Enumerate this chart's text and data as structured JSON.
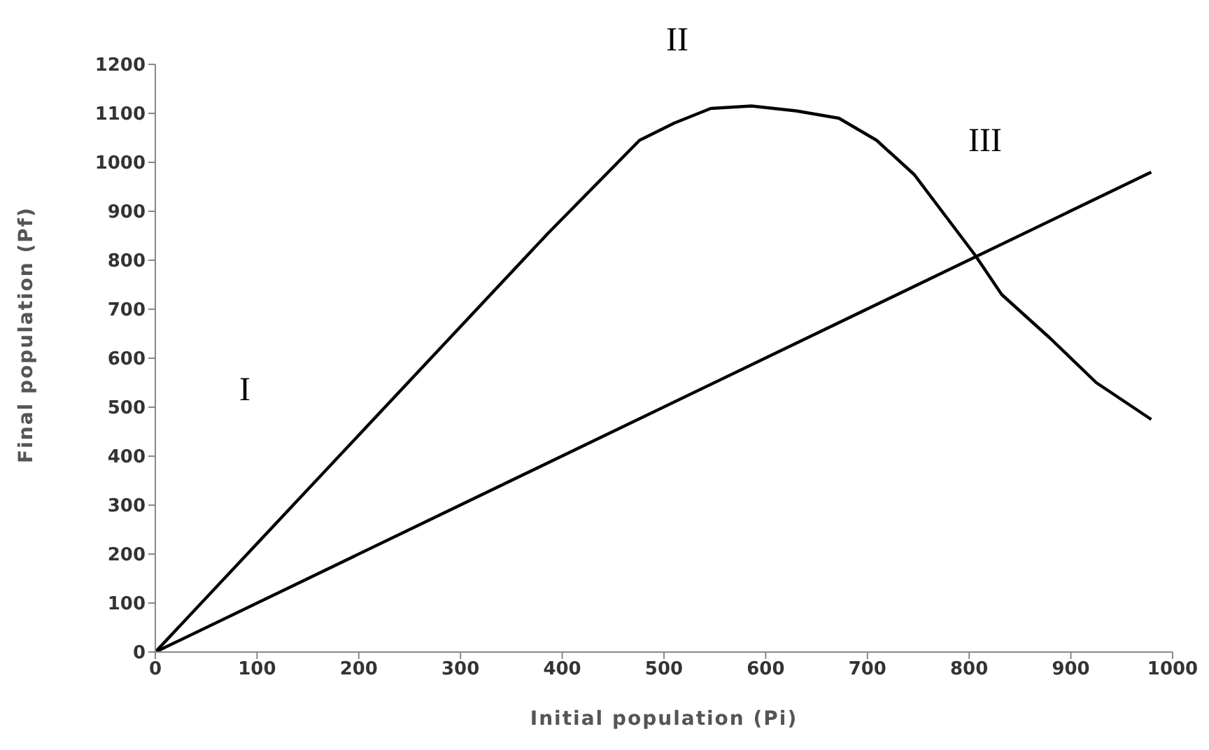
{
  "chart_data": {
    "type": "line",
    "xlabel": "Initial population (Pi)",
    "ylabel": "Final population (Pf)",
    "series": [
      {
        "color": "#000000",
        "x": [
          0,
          386,
          476,
          510,
          546,
          586,
          630,
          672,
          709,
          746,
          806,
          832,
          880,
          925,
          979
        ],
        "values": [
          0,
          855,
          1045,
          1080,
          1110,
          1115,
          1105,
          1090,
          1045,
          975,
          810,
          730,
          640,
          550,
          475
        ]
      },
      {
        "color": "#000000",
        "x": [
          0,
          979
        ],
        "values": [
          0,
          980
        ]
      }
    ],
    "xlim": [
      0,
      1000
    ],
    "xticks": [
      0,
      100,
      200,
      300,
      400,
      500,
      600,
      700,
      800,
      900,
      1000
    ],
    "ylim": [
      0,
      1200
    ],
    "yticks": [
      0,
      100,
      200,
      300,
      400,
      500,
      600,
      700,
      800,
      900,
      1000,
      1100,
      1200
    ],
    "grid": false,
    "legend": false,
    "marker": "none",
    "line_style": "solid",
    "annotations": [
      "I",
      "II",
      "III"
    ]
  }
}
